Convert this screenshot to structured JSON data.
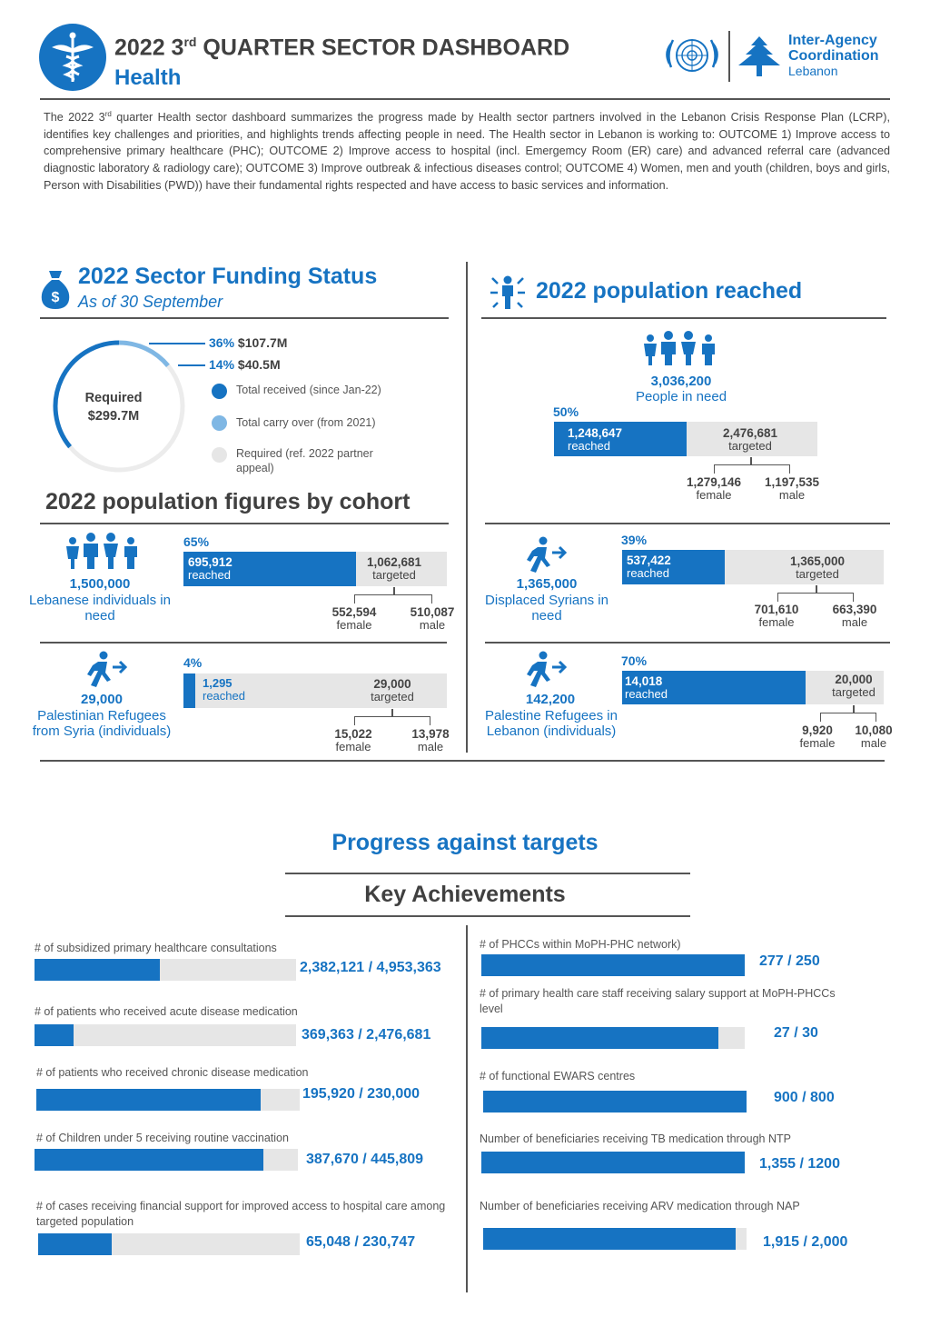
{
  "header": {
    "title_prefix": "2022 3",
    "title_sup": "rd",
    "title_suffix": " QUARTER SECTOR DASHBOARD",
    "subtitle": "Health",
    "org_line1": "Inter-Agency",
    "org_line2": "Coordination",
    "org_line3": "Lebanon"
  },
  "intro": {
    "part1": "The 2022 3",
    "sup": "rd",
    "part2": " quarter Health sector dashboard summarizes the progress made by Health sector partners involved in the Lebanon Crisis Response Plan (LCRP), identifies key challenges and priorities, and highlights trends affecting people in need. The Health sector in Lebanon is working to: OUTCOME 1) Improve access to comprehensive primary healthcare (PHC); OUTCOME 2) Improve access to hospital (incl. Emergemcy Room (ER) care) and advanced referral care (advanced diagnostic laboratory & radiology care); OUTCOME 3) Improve outbreak & infectious diseases control; OUTCOME 4) Women, men and youth (children, boys and girls, Person with Disabilities (PWD)) have their fundamental rights respected and have access to basic services and information."
  },
  "funding": {
    "title": "2022 Sector Funding Status",
    "subtitle": "As of 30 September",
    "required_label": "Required",
    "required_value": "$299.7M",
    "received_pct": "36%",
    "received_amt": "$107.7M",
    "carry_pct": "14%",
    "carry_amt": "$40.5M",
    "received_fraction": 0.36,
    "carry_fraction": 0.14,
    "legend": [
      {
        "label": "Total received (since Jan-22)",
        "color": "#1673c2"
      },
      {
        "label": "Total carry over (from 2021)",
        "color": "#7fb7e4"
      },
      {
        "label": "Required (ref. 2022 partner appeal)",
        "color": "#e6e6e6"
      }
    ]
  },
  "population_reached": {
    "title": "2022 population reached",
    "pin_value": "3,036,200",
    "pin_label": "People in need",
    "pct": "50%",
    "fraction": 0.504,
    "reached_value": "1,248,647",
    "reached_label": "reached",
    "targeted_value": "2,476,681",
    "targeted_label": "targeted",
    "female_value": "1,279,146",
    "female_label": "female",
    "male_value": "1,197,535",
    "male_label": "male"
  },
  "cohorts": {
    "title": "2022 population figures by cohort",
    "items": [
      {
        "num": "1,500,000",
        "name": "Lebanese individuals in need",
        "pct": "65%",
        "fraction": 0.655,
        "reached": "695,912",
        "reached_label": "reached",
        "targeted": "1,062,681",
        "targeted_label": "targeted",
        "female": "552,594",
        "female_label": "female",
        "male": "510,087",
        "male_label": "male"
      },
      {
        "num": "29,000",
        "name": "Palestinian Refugees from Syria (individuals)",
        "pct": "4%",
        "fraction": 0.045,
        "reached": "1,295",
        "reached_label": "reached",
        "targeted": "29,000",
        "targeted_label": "targeted",
        "female": "15,022",
        "female_label": "female",
        "male": "13,978",
        "male_label": "male"
      },
      {
        "num": "1,365,000",
        "name": "Displaced Syrians in need",
        "pct": "39%",
        "fraction": 0.394,
        "reached": "537,422",
        "reached_label": "reached",
        "targeted": "1,365,000",
        "targeted_label": "targeted",
        "female": "701,610",
        "female_label": "female",
        "male": "663,390",
        "male_label": "male"
      },
      {
        "num": "142,200",
        "name": "Palestine Refugees in Lebanon (individuals)",
        "pct": "70%",
        "fraction": 0.7,
        "reached": "14,018",
        "reached_label": "reached",
        "targeted": "20,000",
        "targeted_label": "targeted",
        "female": "9,920",
        "female_label": "female",
        "male": "10,080",
        "male_label": "male"
      }
    ]
  },
  "progress": {
    "title": "Progress against targets",
    "subtitle": "Key Achievements",
    "left": [
      {
        "label": "# of subsidized primary healthcare consultations",
        "value": "2,382,121 / 4,953,363",
        "fraction": 0.48
      },
      {
        "label": "# of patients who received acute disease medication",
        "value": "369,363 / 2,476,681",
        "fraction": 0.15
      },
      {
        "label": "# of patients who received chronic disease medication",
        "value": "195,920 / 230,000",
        "fraction": 0.85
      },
      {
        "label": "# of Children under 5 receiving routine vaccination",
        "value": "387,670 / 445,809",
        "fraction": 0.87
      },
      {
        "label": "# of cases receiving financial support for improved access to hospital care among targeted population",
        "value": "65,048 / 230,747",
        "fraction": 0.28
      }
    ],
    "right": [
      {
        "label": "# of PHCCs within MoPH-PHC network)",
        "value": "277 / 250",
        "fraction": 1.0
      },
      {
        "label": "# of primary health care staff receiving salary support at MoPH-PHCCs level",
        "value": "27 / 30",
        "fraction": 0.9
      },
      {
        "label": "# of functional EWARS centres",
        "value": "900 / 800",
        "fraction": 1.0
      },
      {
        "label": "Number of beneficiaries receiving TB medication through NTP",
        "value": "1,355 / 1200",
        "fraction": 1.0
      },
      {
        "label": "Number of beneficiaries receiving ARV medication through NAP",
        "value": "1,915 / 2,000",
        "fraction": 0.96
      }
    ]
  }
}
